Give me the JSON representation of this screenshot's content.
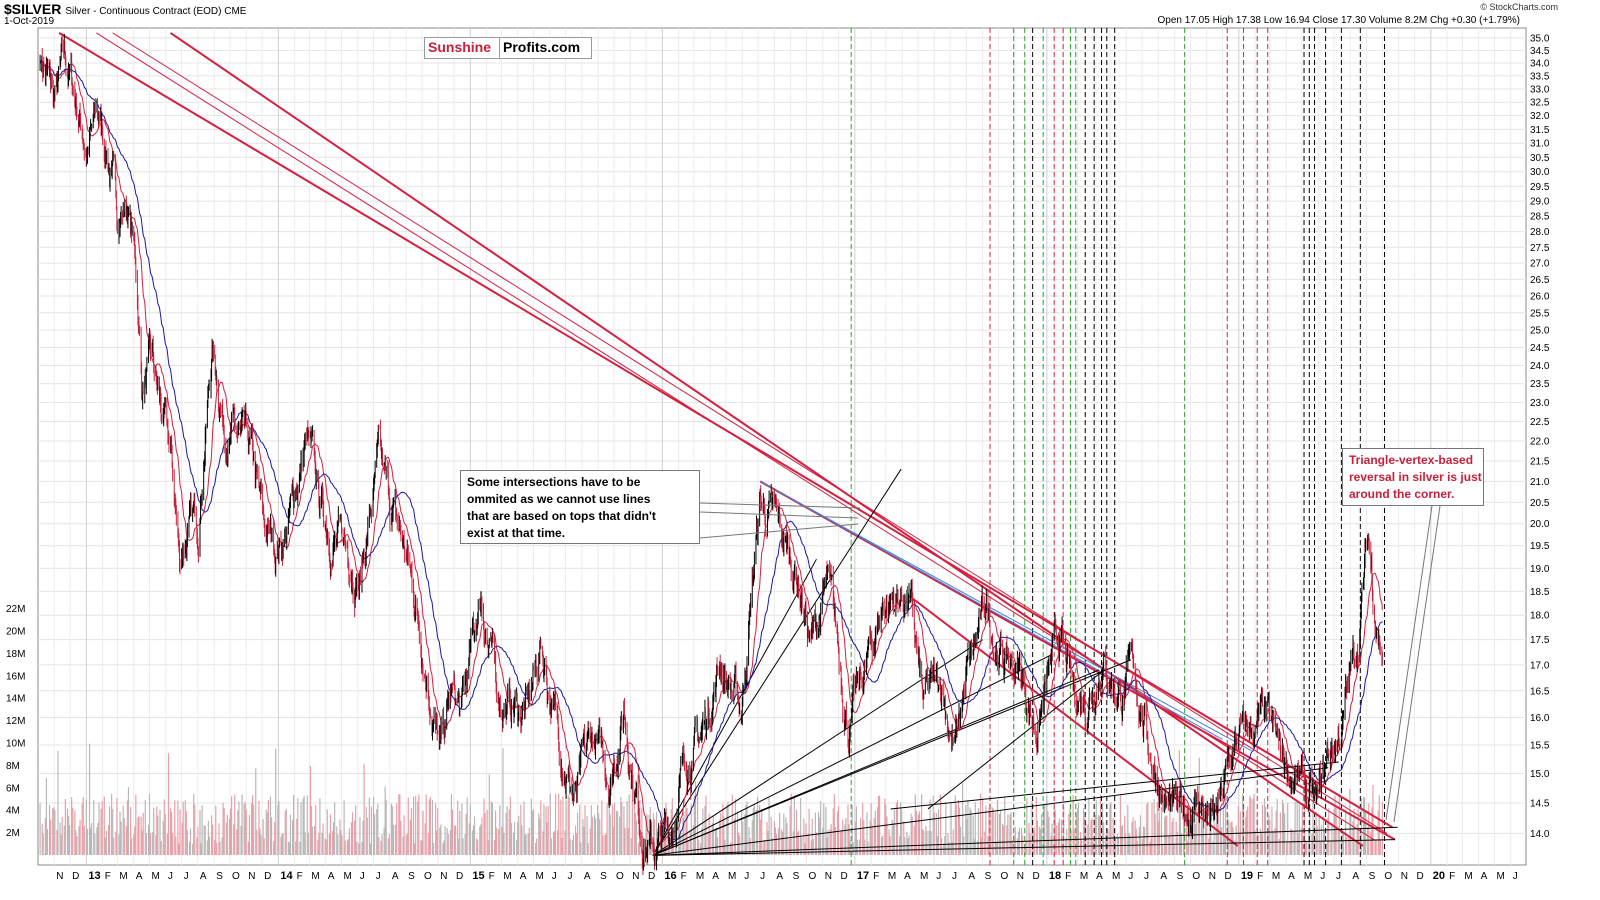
{
  "header": {
    "ticker": "$SILVER",
    "subtitle": "Silver - Continuous Contract (EOD)  CME",
    "date": "1-Oct-2019",
    "ohlc": "Open 17.05  High 17.38  Low 16.94  Close 17.30  Volume 8.2M  Chg +0.30 (+1.79%)",
    "credit": "© StockCharts.com"
  },
  "logo": {
    "left": "Sunshine",
    "right": "Profits.com"
  },
  "annotations": {
    "note1": [
      "Some intersections have to be",
      "ommited as we cannot use lines",
      "that are based on tops that didn't",
      "exist at that time."
    ],
    "note2": [
      "Triangle-vertex-based",
      "reversal in silver is just",
      "around the corner."
    ]
  },
  "colors": {
    "price_up": "#000000",
    "price_down": "#c8203a",
    "ma_short": "#d42040",
    "ma_long": "#1a1aa0",
    "trendline_red": "#d42040",
    "trendline_blue": "#4a7fd4",
    "cycle_green": "#2aa02a",
    "cycle_red": "#d42040",
    "cycle_black": "#000000",
    "volume_red": "#e8a0a8",
    "volume_gray": "#b8b8b8"
  },
  "chart_data": {
    "type": "line",
    "title": "$SILVER",
    "xlabel": "",
    "ylabel": "",
    "ylim": [
      13.5,
      35.2
    ],
    "y_scale": "log",
    "y_ticks": [
      "14.0",
      "14.5",
      "15.0",
      "15.5",
      "16.0",
      "16.5",
      "17.0",
      "17.5",
      "18.0",
      "18.5",
      "19.0",
      "19.5",
      "20.0",
      "20.5",
      "21.0",
      "21.5",
      "22.0",
      "22.5",
      "23.0",
      "23.5",
      "24.0",
      "24.5",
      "25.0",
      "25.5",
      "26.0",
      "26.5",
      "27.0",
      "27.5",
      "28.0",
      "28.5",
      "29.0",
      "29.5",
      "30.0",
      "30.5",
      "31.0",
      "31.5",
      "32.0",
      "32.5",
      "33.0",
      "33.5",
      "34.0",
      "34.5",
      "35.0"
    ],
    "volume_ticks": [
      "2M",
      "4M",
      "6M",
      "8M",
      "10M",
      "12M",
      "14M",
      "16M",
      "18M",
      "20M",
      "22M"
    ],
    "x_ticks": [
      "N",
      "D",
      "13",
      "F",
      "M",
      "A",
      "M",
      "J",
      "J",
      "A",
      "S",
      "O",
      "N",
      "D",
      "14",
      "F",
      "M",
      "A",
      "M",
      "J",
      "J",
      "A",
      "S",
      "O",
      "N",
      "D",
      "15",
      "F",
      "M",
      "A",
      "M",
      "J",
      "J",
      "A",
      "S",
      "O",
      "N",
      "D",
      "16",
      "F",
      "M",
      "A",
      "M",
      "J",
      "J",
      "A",
      "S",
      "O",
      "N",
      "D",
      "17",
      "F",
      "M",
      "A",
      "M",
      "J",
      "J",
      "A",
      "S",
      "O",
      "N",
      "D",
      "18",
      "F",
      "M",
      "A",
      "M",
      "J",
      "J",
      "A",
      "S",
      "O",
      "N",
      "D",
      "19",
      "F",
      "M",
      "A",
      "M",
      "J",
      "J",
      "A",
      "S",
      "O",
      "N",
      "D",
      "20",
      "F",
      "M",
      "A",
      "M",
      "J"
    ],
    "x_range": [
      "2012-10-01",
      "2020-06-30"
    ],
    "grid": true,
    "series": [
      {
        "values": [
          [
            "2012-10-05",
            34.5
          ],
          [
            "2012-11-01",
            32.5
          ],
          [
            "2012-11-20",
            33.9
          ],
          [
            "2012-12-05",
            33.2
          ],
          [
            "2013-01-02",
            30.8
          ],
          [
            "2013-01-22",
            32.0
          ],
          [
            "2013-02-10",
            30.7
          ],
          [
            "2013-02-28",
            28.7
          ],
          [
            "2013-03-20",
            28.9
          ],
          [
            "2013-04-05",
            27.0
          ],
          [
            "2013-04-16",
            23.5
          ],
          [
            "2013-05-05",
            24.0
          ],
          [
            "2013-05-28",
            22.3
          ],
          [
            "2013-06-10",
            21.6
          ],
          [
            "2013-06-27",
            19.2
          ],
          [
            "2013-07-10",
            19.8
          ],
          [
            "2013-08-01",
            20.0
          ],
          [
            "2013-08-28",
            24.5
          ],
          [
            "2013-09-20",
            22.5
          ],
          [
            "2013-10-15",
            22.0
          ],
          [
            "2013-11-10",
            21.5
          ],
          [
            "2013-12-05",
            19.8
          ],
          [
            "2013-12-31",
            19.5
          ],
          [
            "2014-01-20",
            20.0
          ],
          [
            "2014-02-24",
            22.0
          ],
          [
            "2014-03-20",
            20.5
          ],
          [
            "2014-04-15",
            19.7
          ],
          [
            "2014-05-20",
            19.3
          ],
          [
            "2014-06-05",
            18.8
          ],
          [
            "2014-07-10",
            21.4
          ],
          [
            "2014-08-01",
            20.4
          ],
          [
            "2014-09-01",
            19.3
          ],
          [
            "2014-10-05",
            17.3
          ],
          [
            "2014-11-05",
            15.3
          ],
          [
            "2014-11-25",
            16.4
          ],
          [
            "2014-12-15",
            16.0
          ],
          [
            "2015-01-21",
            18.4
          ],
          [
            "2015-02-20",
            16.5
          ],
          [
            "2015-03-15",
            16.2
          ],
          [
            "2015-04-20",
            16.1
          ],
          [
            "2015-05-15",
            17.4
          ],
          [
            "2015-06-10",
            16.0
          ],
          [
            "2015-07-20",
            14.5
          ],
          [
            "2015-08-20",
            15.6
          ],
          [
            "2015-09-25",
            15.0
          ],
          [
            "2015-10-20",
            16.2
          ],
          [
            "2015-11-20",
            14.2
          ],
          [
            "2015-12-14",
            13.7
          ],
          [
            "2016-01-15",
            14.0
          ],
          [
            "2016-02-15",
            15.3
          ],
          [
            "2016-03-15",
            15.6
          ],
          [
            "2016-04-20",
            17.1
          ],
          [
            "2016-05-30",
            16.1
          ],
          [
            "2016-07-05",
            20.5
          ],
          [
            "2016-08-10",
            19.8
          ],
          [
            "2016-09-15",
            18.8
          ],
          [
            "2016-10-10",
            17.4
          ],
          [
            "2016-11-10",
            18.6
          ],
          [
            "2016-12-20",
            15.9
          ],
          [
            "2017-01-20",
            16.8
          ],
          [
            "2017-02-25",
            18.3
          ],
          [
            "2017-04-15",
            18.4
          ],
          [
            "2017-05-10",
            16.2
          ],
          [
            "2017-06-15",
            16.7
          ],
          [
            "2017-07-10",
            15.4
          ],
          [
            "2017-07-30",
            16.6
          ],
          [
            "2017-09-08",
            18.1
          ],
          [
            "2017-10-10",
            17.1
          ],
          [
            "2017-11-10",
            16.9
          ],
          [
            "2017-12-12",
            15.8
          ],
          [
            "2018-01-25",
            17.5
          ],
          [
            "2018-02-20",
            16.4
          ],
          [
            "2018-03-20",
            16.4
          ],
          [
            "2018-04-15",
            17.2
          ],
          [
            "2018-05-20",
            16.4
          ],
          [
            "2018-06-15",
            16.9
          ],
          [
            "2018-07-15",
            15.5
          ],
          [
            "2018-08-15",
            14.5
          ],
          [
            "2018-09-10",
            14.2
          ],
          [
            "2018-10-15",
            14.6
          ],
          [
            "2018-11-15",
            14.1
          ],
          [
            "2018-12-31",
            15.6
          ],
          [
            "2019-02-20",
            15.9
          ],
          [
            "2019-03-20",
            15.3
          ],
          [
            "2019-05-01",
            14.8
          ],
          [
            "2019-05-28",
            14.3
          ],
          [
            "2019-06-20",
            15.3
          ],
          [
            "2019-07-15",
            15.8
          ],
          [
            "2019-08-15",
            17.5
          ],
          [
            "2019-09-04",
            19.6
          ],
          [
            "2019-09-20",
            18.0
          ],
          [
            "2019-10-01",
            17.3
          ]
        ]
      }
    ]
  }
}
